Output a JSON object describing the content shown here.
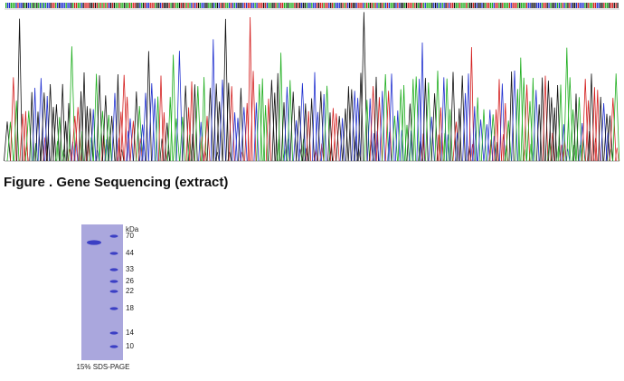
{
  "figure": {
    "caption": "Figure . Gene Sequencing (extract)"
  },
  "gel": {
    "unit": "kDa",
    "markers": [
      70,
      44,
      33,
      26,
      22,
      18,
      14,
      10
    ],
    "caption": "15% SDS-PAGE"
  }
}
